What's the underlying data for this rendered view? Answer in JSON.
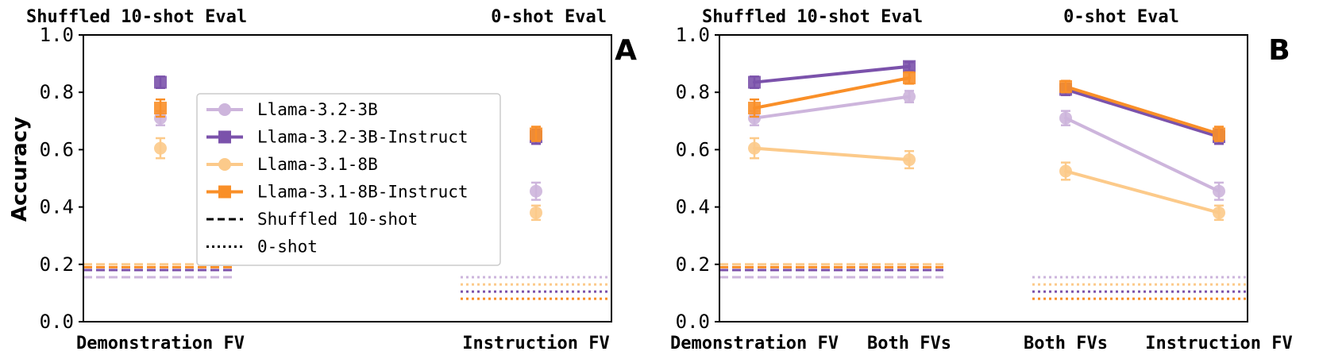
{
  "colors": {
    "llama32_3b": "#cdb5dc",
    "llama32_3b_instruct": "#7b52ab",
    "llama31_8b": "#fcca8a",
    "llama31_8b_instruct": "#f98f28",
    "axis": "#000000"
  },
  "legend": {
    "placement": "center-left (panel A)",
    "entries": [
      {
        "label": "Llama-3.2-3B",
        "color": "#cdb5dc",
        "marker": "circle",
        "line": "solid"
      },
      {
        "label": "Llama-3.2-3B-Instruct",
        "color": "#7b52ab",
        "marker": "square",
        "line": "solid"
      },
      {
        "label": "Llama-3.1-8B",
        "color": "#fcca8a",
        "marker": "circle",
        "line": "solid"
      },
      {
        "label": "Llama-3.1-8B-Instruct",
        "color": "#f98f28",
        "marker": "square",
        "line": "solid"
      },
      {
        "label": "Shuffled 10-shot",
        "color": "#000000",
        "marker": "none",
        "line": "dashed"
      },
      {
        "label": "0-shot",
        "color": "#000000",
        "marker": "none",
        "line": "dotted"
      }
    ]
  },
  "chart_data": [
    {
      "panel_label": "A",
      "type": "scatter",
      "ylabel": "Accuracy",
      "ylim": [
        0.0,
        1.0
      ],
      "yticks": [
        "0.0",
        "0.2",
        "0.4",
        "0.6",
        "0.8",
        "1.0"
      ],
      "section_titles": [
        "Shuffled 10-shot Eval",
        "0-shot Eval"
      ],
      "categories": [
        "Demonstration FV",
        "Instruction FV"
      ],
      "connect_lines": false,
      "series": [
        {
          "name": "Llama-3.2-3B",
          "marker": "circle",
          "color": "#cdb5dc",
          "values": [
            0.71,
            0.455
          ],
          "err": [
            0.025,
            0.03
          ]
        },
        {
          "name": "Llama-3.2-3B-Instruct",
          "marker": "square",
          "color": "#7b52ab",
          "values": [
            0.835,
            0.645
          ],
          "err": [
            0.02,
            0.025
          ]
        },
        {
          "name": "Llama-3.1-8B",
          "marker": "circle",
          "color": "#fcca8a",
          "values": [
            0.605,
            0.38
          ],
          "err": [
            0.035,
            0.025
          ]
        },
        {
          "name": "Llama-3.1-8B-Instruct",
          "marker": "square",
          "color": "#f98f28",
          "values": [
            0.745,
            0.655
          ],
          "err": [
            0.03,
            0.025
          ]
        }
      ],
      "baselines": [
        {
          "style": "dashed",
          "section": 0,
          "color": "#cdb5dc",
          "value": 0.155
        },
        {
          "style": "dashed",
          "section": 0,
          "color": "#7b52ab",
          "value": 0.18
        },
        {
          "style": "dashed",
          "section": 0,
          "color": "#fcca8a",
          "value": 0.2
        },
        {
          "style": "dashed",
          "section": 0,
          "color": "#f98f28",
          "value": 0.19
        },
        {
          "style": "dotted",
          "section": 1,
          "color": "#cdb5dc",
          "value": 0.155
        },
        {
          "style": "dotted",
          "section": 1,
          "color": "#fcca8a",
          "value": 0.13
        },
        {
          "style": "dotted",
          "section": 1,
          "color": "#7b52ab",
          "value": 0.105
        },
        {
          "style": "dotted",
          "section": 1,
          "color": "#f98f28",
          "value": 0.08
        }
      ]
    },
    {
      "panel_label": "B",
      "type": "line",
      "ylabel": "",
      "ylim": [
        0.0,
        1.0
      ],
      "yticks": [
        "0.0",
        "0.2",
        "0.4",
        "0.6",
        "0.8",
        "1.0"
      ],
      "section_titles": [
        "Shuffled 10-shot Eval",
        "0-shot Eval"
      ],
      "categories": [
        "Demonstration FV",
        "Both FVs",
        "Both FVs",
        "Instruction FV"
      ],
      "connect_lines": true,
      "series": [
        {
          "name": "Llama-3.2-3B",
          "marker": "circle",
          "color": "#cdb5dc",
          "values": [
            0.71,
            0.785,
            0.71,
            0.455
          ],
          "err": [
            0.025,
            0.02,
            0.025,
            0.03
          ]
        },
        {
          "name": "Llama-3.2-3B-Instruct",
          "marker": "square",
          "color": "#7b52ab",
          "values": [
            0.835,
            0.89,
            0.81,
            0.645
          ],
          "err": [
            0.02,
            0.015,
            0.02,
            0.025
          ]
        },
        {
          "name": "Llama-3.1-8B",
          "marker": "circle",
          "color": "#fcca8a",
          "values": [
            0.605,
            0.565,
            0.525,
            0.38
          ],
          "err": [
            0.035,
            0.03,
            0.03,
            0.025
          ]
        },
        {
          "name": "Llama-3.1-8B-Instruct",
          "marker": "square",
          "color": "#f98f28",
          "values": [
            0.745,
            0.85,
            0.82,
            0.655
          ],
          "err": [
            0.03,
            0.02,
            0.02,
            0.025
          ]
        }
      ],
      "baselines": [
        {
          "style": "dashed",
          "section": 0,
          "color": "#cdb5dc",
          "value": 0.155
        },
        {
          "style": "dashed",
          "section": 0,
          "color": "#7b52ab",
          "value": 0.18
        },
        {
          "style": "dashed",
          "section": 0,
          "color": "#fcca8a",
          "value": 0.2
        },
        {
          "style": "dashed",
          "section": 0,
          "color": "#f98f28",
          "value": 0.19
        },
        {
          "style": "dotted",
          "section": 1,
          "color": "#cdb5dc",
          "value": 0.155
        },
        {
          "style": "dotted",
          "section": 1,
          "color": "#fcca8a",
          "value": 0.13
        },
        {
          "style": "dotted",
          "section": 1,
          "color": "#7b52ab",
          "value": 0.105
        },
        {
          "style": "dotted",
          "section": 1,
          "color": "#f98f28",
          "value": 0.08
        }
      ]
    }
  ]
}
